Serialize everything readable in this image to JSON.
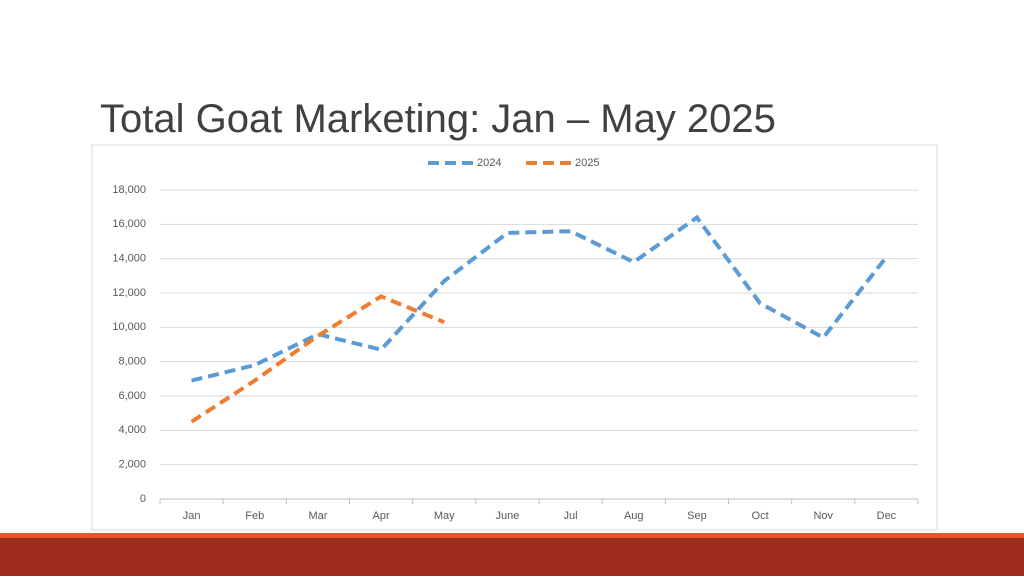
{
  "chart_data": {
    "type": "line",
    "title": "Total Goat Marketing: Jan – May 2025",
    "categories": [
      "Jan",
      "Feb",
      "Mar",
      "Apr",
      "May",
      "June",
      "Jul",
      "Aug",
      "Sep",
      "Oct",
      "Nov",
      "Dec"
    ],
    "series": [
      {
        "name": "2024",
        "color": "#5b9bd5",
        "values": [
          6900,
          7800,
          9600,
          8700,
          12700,
          15500,
          15600,
          13800,
          16400,
          11400,
          9400,
          14100
        ]
      },
      {
        "name": "2025",
        "color": "#ed7d31",
        "values": [
          4500,
          6900,
          9500,
          11800,
          10300,
          null,
          null,
          null,
          null,
          null,
          null,
          null
        ]
      }
    ],
    "ylim": [
      0,
      18000
    ],
    "yticks": [
      0,
      {
        "value": 2000,
        "label": "2,000"
      },
      {
        "value": 4000,
        "label": "4,000"
      },
      {
        "value": 6000,
        "label": "6,000"
      },
      {
        "value": 8000,
        "label": "8,000"
      },
      {
        "value": 10000,
        "label": "10,000"
      },
      {
        "value": 12000,
        "label": "12,000"
      },
      {
        "value": 14000,
        "label": "14,000"
      },
      {
        "value": 16000,
        "label": "16,000"
      },
      {
        "value": 18000,
        "label": "18,000"
      }
    ],
    "grid": true,
    "legend": "top"
  }
}
